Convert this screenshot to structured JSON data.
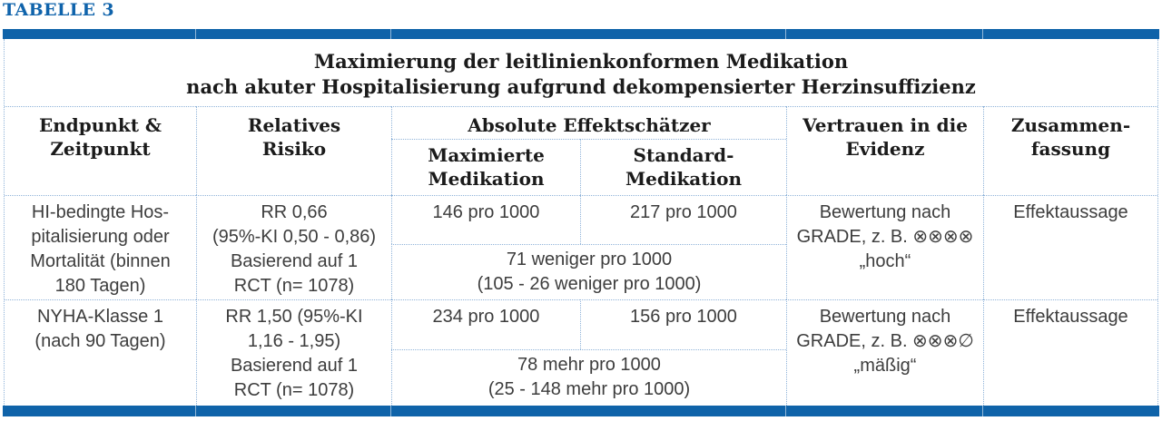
{
  "page_label": "TABELLE 3",
  "colors": {
    "accent_bar": "#0f63a9",
    "dotted_border": "#8fb3d9",
    "label_blue": "#0f63ab",
    "heading_text": "#1b1b1b",
    "body_text": "#3d3d3d"
  },
  "table": {
    "title": "Maximierung der leitlinienkonformen Medikation\nnach akuter Hospitalisierung aufgrund dekompensierter Herzinsuffizienz",
    "headers": {
      "endpoint": "Endpunkt &\nZeitpunkt",
      "relative_risk": "Relatives\nRisiko",
      "absolute_effects": "Absolute Effektschätzer",
      "maximized_medication": "Maximierte\nMedikation",
      "standard_medication": "Standard-\nMedikation",
      "evidence_confidence": "Vertrauen in die\nEvidenz",
      "summary": "Zusammen-\nfassung"
    },
    "rows": [
      {
        "endpoint": "HI-bedingte Hos-\npitalisierung oder\nMortalität (binnen\n180 Tagen)",
        "relative_risk": "RR 0,66\n(95%-KI 0,50 - 0,86)\nBasierend auf 1\nRCT (n= 1078)",
        "maximized": "146 pro 1000",
        "standard": "217 pro 1000",
        "absolute_difference": "71 weniger pro 1000\n(105 - 26 weniger pro 1000)",
        "evidence": "Bewertung nach\nGRADE, z. B. ⊗⊗⊗⊗\n„hoch“",
        "summary": "Effektaussage"
      },
      {
        "endpoint": "NYHA-Klasse 1\n(nach 90 Tagen)",
        "relative_risk": "RR 1,50 (95%-KI\n1,16 - 1,95)\nBasierend auf 1\nRCT (n= 1078)",
        "maximized": "234 pro 1000",
        "standard": "156 pro 1000",
        "absolute_difference": "78 mehr pro 1000\n(25 - 148 mehr pro 1000)",
        "evidence": "Bewertung nach\nGRADE, z. B. ⊗⊗⊗∅\n„mäßig“",
        "summary": "Effektaussage"
      }
    ]
  }
}
